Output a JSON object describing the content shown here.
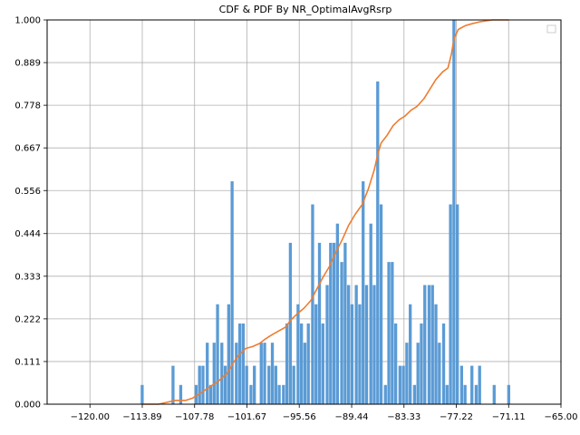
{
  "chart_data": {
    "type": "bar",
    "title": "CDF & PDF By NR_OptimalAvgRsrp",
    "xlabel": "",
    "ylabel": "",
    "xlim": [
      -125.0,
      -65.0
    ],
    "ylim": [
      0.0,
      1.0
    ],
    "x_ticks": [
      -120.0,
      -113.89,
      -107.78,
      -101.67,
      -95.56,
      -89.44,
      -83.33,
      -77.22,
      -71.11,
      -65.0
    ],
    "x_tick_labels": [
      "−120.00",
      "−113.89",
      "−107.78",
      "−101.67",
      "−95.56",
      "−89.44",
      "−83.33",
      "−77.22",
      "−71.11",
      "−65.00"
    ],
    "y_ticks": [
      0.0,
      0.111,
      0.222,
      0.333,
      0.444,
      0.556,
      0.667,
      0.778,
      0.889,
      1.0
    ],
    "y_tick_labels": [
      "0.000",
      "0.111",
      "0.222",
      "0.333",
      "0.444",
      "0.556",
      "0.667",
      "0.778",
      "0.889",
      "1.000"
    ],
    "grid": true,
    "legend": "top-right (empty)",
    "bar_color": "#5b9bd5",
    "line_color": "#ed7d31",
    "series": [
      {
        "type": "bar",
        "points": [
          [
            -113.9,
            0.05
          ],
          [
            -110.3,
            0.1
          ],
          [
            -109.4,
            0.05
          ],
          [
            -107.6,
            0.05
          ],
          [
            -107.2,
            0.1
          ],
          [
            -106.8,
            0.1
          ],
          [
            -106.3,
            0.16
          ],
          [
            -105.9,
            0.05
          ],
          [
            -105.5,
            0.16
          ],
          [
            -105.1,
            0.26
          ],
          [
            -104.6,
            0.16
          ],
          [
            -104.2,
            0.1
          ],
          [
            -103.8,
            0.26
          ],
          [
            -103.4,
            0.58
          ],
          [
            -102.9,
            0.16
          ],
          [
            -102.5,
            0.21
          ],
          [
            -102.1,
            0.21
          ],
          [
            -101.7,
            0.1
          ],
          [
            -101.2,
            0.05
          ],
          [
            -100.8,
            0.1
          ],
          [
            -100.0,
            0.16
          ],
          [
            -99.6,
            0.16
          ],
          [
            -99.1,
            0.1
          ],
          [
            -98.7,
            0.16
          ],
          [
            -98.3,
            0.1
          ],
          [
            -97.9,
            0.05
          ],
          [
            -97.4,
            0.05
          ],
          [
            -97.0,
            0.21
          ],
          [
            -96.6,
            0.42
          ],
          [
            -96.2,
            0.1
          ],
          [
            -95.7,
            0.26
          ],
          [
            -95.3,
            0.21
          ],
          [
            -94.9,
            0.16
          ],
          [
            -94.5,
            0.21
          ],
          [
            -94.0,
            0.52
          ],
          [
            -93.6,
            0.26
          ],
          [
            -93.2,
            0.42
          ],
          [
            -92.8,
            0.21
          ],
          [
            -92.3,
            0.31
          ],
          [
            -91.9,
            0.42
          ],
          [
            -91.5,
            0.42
          ],
          [
            -91.1,
            0.47
          ],
          [
            -90.6,
            0.37
          ],
          [
            -90.2,
            0.42
          ],
          [
            -89.8,
            0.31
          ],
          [
            -89.4,
            0.26
          ],
          [
            -88.9,
            0.31
          ],
          [
            -88.5,
            0.26
          ],
          [
            -88.1,
            0.58
          ],
          [
            -87.7,
            0.31
          ],
          [
            -87.2,
            0.47
          ],
          [
            -86.8,
            0.31
          ],
          [
            -86.4,
            0.84
          ],
          [
            -86.0,
            0.52
          ],
          [
            -85.5,
            0.05
          ],
          [
            -85.1,
            0.37
          ],
          [
            -84.7,
            0.37
          ],
          [
            -84.3,
            0.21
          ],
          [
            -83.8,
            0.1
          ],
          [
            -83.4,
            0.1
          ],
          [
            -83.0,
            0.16
          ],
          [
            -82.6,
            0.26
          ],
          [
            -82.1,
            0.05
          ],
          [
            -81.7,
            0.16
          ],
          [
            -81.3,
            0.21
          ],
          [
            -80.9,
            0.31
          ],
          [
            -80.4,
            0.31
          ],
          [
            -80.0,
            0.31
          ],
          [
            -79.6,
            0.26
          ],
          [
            -79.2,
            0.16
          ],
          [
            -78.7,
            0.21
          ],
          [
            -78.3,
            0.05
          ],
          [
            -77.9,
            0.52
          ],
          [
            -77.5,
            1.0
          ],
          [
            -77.1,
            0.52
          ],
          [
            -76.6,
            0.1
          ],
          [
            -76.2,
            0.05
          ],
          [
            -75.4,
            0.1
          ],
          [
            -74.9,
            0.05
          ],
          [
            -74.5,
            0.1
          ],
          [
            -72.8,
            0.05
          ],
          [
            -71.1,
            0.05
          ]
        ]
      },
      {
        "type": "line",
        "points": [
          [
            -113.9,
            0.0
          ],
          [
            -112.0,
            0.0
          ],
          [
            -111.0,
            0.005
          ],
          [
            -110.0,
            0.01
          ],
          [
            -108.8,
            0.01
          ],
          [
            -108.0,
            0.016
          ],
          [
            -107.0,
            0.03
          ],
          [
            -106.0,
            0.045
          ],
          [
            -105.0,
            0.06
          ],
          [
            -104.0,
            0.08
          ],
          [
            -103.2,
            0.11
          ],
          [
            -102.5,
            0.13
          ],
          [
            -101.8,
            0.145
          ],
          [
            -101.0,
            0.15
          ],
          [
            -100.2,
            0.158
          ],
          [
            -99.5,
            0.17
          ],
          [
            -98.8,
            0.18
          ],
          [
            -98.0,
            0.19
          ],
          [
            -97.2,
            0.2
          ],
          [
            -96.5,
            0.22
          ],
          [
            -95.8,
            0.235
          ],
          [
            -95.0,
            0.25
          ],
          [
            -94.2,
            0.27
          ],
          [
            -93.5,
            0.3
          ],
          [
            -92.8,
            0.33
          ],
          [
            -92.0,
            0.36
          ],
          [
            -91.3,
            0.395
          ],
          [
            -90.5,
            0.43
          ],
          [
            -89.8,
            0.465
          ],
          [
            -89.0,
            0.495
          ],
          [
            -88.2,
            0.52
          ],
          [
            -87.5,
            0.56
          ],
          [
            -86.8,
            0.61
          ],
          [
            -86.4,
            0.65
          ],
          [
            -86.0,
            0.68
          ],
          [
            -85.3,
            0.7
          ],
          [
            -84.6,
            0.725
          ],
          [
            -83.9,
            0.74
          ],
          [
            -83.2,
            0.75
          ],
          [
            -82.5,
            0.765
          ],
          [
            -81.8,
            0.775
          ],
          [
            -81.0,
            0.795
          ],
          [
            -80.3,
            0.82
          ],
          [
            -79.6,
            0.845
          ],
          [
            -78.8,
            0.865
          ],
          [
            -78.2,
            0.875
          ],
          [
            -77.8,
            0.91
          ],
          [
            -77.5,
            0.95
          ],
          [
            -77.0,
            0.975
          ],
          [
            -76.2,
            0.985
          ],
          [
            -75.4,
            0.99
          ],
          [
            -74.5,
            0.995
          ],
          [
            -73.0,
            1.0
          ],
          [
            -71.1,
            1.0
          ]
        ]
      }
    ]
  }
}
